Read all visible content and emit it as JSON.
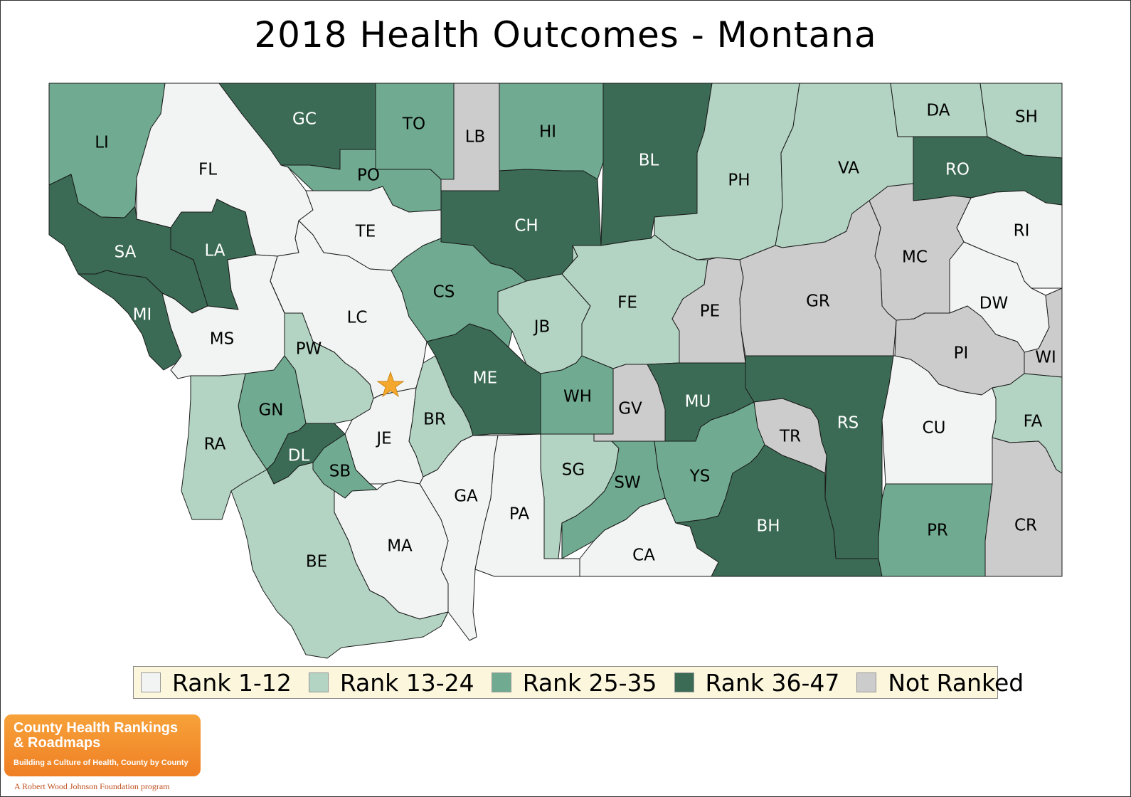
{
  "title": "2018 Health Outcomes - Montana",
  "colors": {
    "rank_1_12": "#f2f4f3",
    "rank_13_24": "#b3d3c3",
    "rank_25_35": "#70ab91",
    "rank_36_47": "#3b6b55",
    "not_ranked": "#cdcccd",
    "capital_star": "#f4a92e"
  },
  "legend": [
    {
      "label": "Rank 1-12",
      "color": "#f2f4f3"
    },
    {
      "label": "Rank 13-24",
      "color": "#b3d3c3"
    },
    {
      "label": "Rank 25-35",
      "color": "#70ab91"
    },
    {
      "label": "Rank 36-47",
      "color": "#3b6b55"
    },
    {
      "label": "Not Ranked",
      "color": "#cdcccd"
    }
  ],
  "counties": [
    {
      "code": "LI",
      "category": "Rank 25-35"
    },
    {
      "code": "FL",
      "category": "Rank 1-12"
    },
    {
      "code": "GC",
      "category": "Rank 36-47"
    },
    {
      "code": "TO",
      "category": "Rank 25-35"
    },
    {
      "code": "LB",
      "category": "Not Ranked"
    },
    {
      "code": "HI",
      "category": "Rank 25-35"
    },
    {
      "code": "BL",
      "category": "Rank 36-47"
    },
    {
      "code": "PH",
      "category": "Rank 13-24"
    },
    {
      "code": "VA",
      "category": "Rank 13-24"
    },
    {
      "code": "DA",
      "category": "Rank 13-24"
    },
    {
      "code": "SH",
      "category": "Rank 13-24"
    },
    {
      "code": "RO",
      "category": "Rank 36-47"
    },
    {
      "code": "PO",
      "category": "Rank 25-35"
    },
    {
      "code": "SA",
      "category": "Rank 36-47"
    },
    {
      "code": "LA",
      "category": "Rank 36-47"
    },
    {
      "code": "TE",
      "category": "Rank 1-12"
    },
    {
      "code": "CH",
      "category": "Rank 36-47"
    },
    {
      "code": "RI",
      "category": "Rank 1-12"
    },
    {
      "code": "MC",
      "category": "Not Ranked"
    },
    {
      "code": "MI",
      "category": "Rank 36-47"
    },
    {
      "code": "MS",
      "category": "Rank 1-12"
    },
    {
      "code": "LC",
      "category": "Rank 1-12"
    },
    {
      "code": "CS",
      "category": "Rank 25-35"
    },
    {
      "code": "JB",
      "category": "Rank 13-24"
    },
    {
      "code": "FE",
      "category": "Rank 13-24"
    },
    {
      "code": "PE",
      "category": "Not Ranked"
    },
    {
      "code": "GR",
      "category": "Not Ranked"
    },
    {
      "code": "DW",
      "category": "Rank 1-12"
    },
    {
      "code": "PW",
      "category": "Rank 13-24"
    },
    {
      "code": "PI",
      "category": "Not Ranked"
    },
    {
      "code": "WI",
      "category": "Not Ranked"
    },
    {
      "code": "ME",
      "category": "Rank 36-47"
    },
    {
      "code": "WH",
      "category": "Rank 25-35"
    },
    {
      "code": "GV",
      "category": "Not Ranked"
    },
    {
      "code": "MU",
      "category": "Rank 36-47"
    },
    {
      "code": "RS",
      "category": "Rank 36-47"
    },
    {
      "code": "CU",
      "category": "Rank 1-12"
    },
    {
      "code": "FA",
      "category": "Rank 13-24"
    },
    {
      "code": "GN",
      "category": "Rank 25-35"
    },
    {
      "code": "RA",
      "category": "Rank 13-24"
    },
    {
      "code": "JE",
      "category": "Rank 1-12"
    },
    {
      "code": "BR",
      "category": "Rank 13-24"
    },
    {
      "code": "TR",
      "category": "Not Ranked"
    },
    {
      "code": "DL",
      "category": "Rank 36-47"
    },
    {
      "code": "SB",
      "category": "Rank 25-35"
    },
    {
      "code": "SG",
      "category": "Rank 13-24"
    },
    {
      "code": "SW",
      "category": "Rank 25-35"
    },
    {
      "code": "YS",
      "category": "Rank 25-35"
    },
    {
      "code": "GA",
      "category": "Rank 1-12"
    },
    {
      "code": "PA",
      "category": "Rank 1-12"
    },
    {
      "code": "BH",
      "category": "Rank 36-47"
    },
    {
      "code": "PR",
      "category": "Rank 25-35"
    },
    {
      "code": "CR",
      "category": "Not Ranked"
    },
    {
      "code": "MA",
      "category": "Rank 1-12"
    },
    {
      "code": "CA",
      "category": "Rank 1-12"
    },
    {
      "code": "BE",
      "category": "Rank 13-24"
    }
  ],
  "logo": {
    "title": "County Health Rankings & Roadmaps",
    "tagline": "Building a Culture of Health, County by County",
    "footer": "A Robert Wood Johnson Foundation program"
  }
}
